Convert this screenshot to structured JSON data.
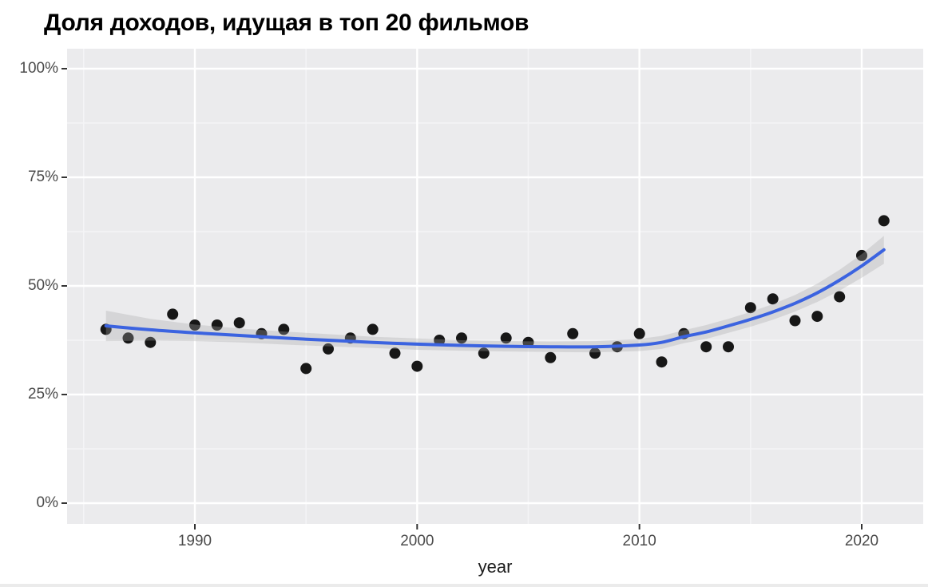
{
  "title": {
    "text": "Доля доходов, идущая в топ 20 фильмов"
  },
  "chart_data": {
    "type": "scatter",
    "title": "Доля доходов, идущая в топ 20 фильмов",
    "xlabel": "year",
    "ylabel": "",
    "units": "percent",
    "grid": true,
    "legend": false,
    "xlim": [
      1984.2,
      2022.8
    ],
    "ylim": [
      -5,
      105
    ],
    "x_ticks": [
      1990,
      2000,
      2010,
      2020
    ],
    "x_minor_gridlines": [
      1985,
      1995,
      2005,
      2015
    ],
    "y_ticks": [
      {
        "label": "0%",
        "value": 0
      },
      {
        "label": "25%",
        "value": 25
      },
      {
        "label": "50%",
        "value": 50
      },
      {
        "label": "75%",
        "value": 75
      },
      {
        "label": "100%",
        "value": 100
      }
    ],
    "y_minor_gridlines": [
      12.5,
      37.5,
      62.5,
      87.5
    ],
    "series": [
      {
        "name": "top20-share-points",
        "type": "scatter",
        "color": "#171717",
        "x": [
          1986,
          1987,
          1988,
          1989,
          1990,
          1991,
          1992,
          1993,
          1994,
          1995,
          1996,
          1997,
          1998,
          1999,
          2000,
          2001,
          2002,
          2003,
          2004,
          2005,
          2006,
          2007,
          2008,
          2009,
          2010,
          2011,
          2012,
          2013,
          2014,
          2015,
          2016,
          2017,
          2018,
          2019,
          2020,
          2021
        ],
        "y": [
          40,
          38,
          37,
          43.5,
          41,
          41,
          41.5,
          39,
          40,
          31,
          35.5,
          38,
          40,
          34.5,
          31.5,
          37.5,
          38,
          34.5,
          38,
          37,
          33.5,
          39,
          34.5,
          36,
          39,
          32.5,
          39,
          36,
          36,
          45,
          47,
          42,
          43,
          47.5,
          57,
          65
        ]
      },
      {
        "name": "loess-trend",
        "type": "line-with-confidence-band",
        "color": "#3b63e0",
        "band_color": "#a9a9a9",
        "x": [
          1986,
          1988,
          1990,
          1992,
          1994,
          1996,
          1998,
          2000,
          2002,
          2004,
          2006,
          2008,
          2010,
          2011,
          2012,
          2013,
          2014,
          2015,
          2016,
          2017,
          2018,
          2019,
          2020,
          2021
        ],
        "y": [
          40.8,
          39.9,
          39.2,
          38.6,
          38.0,
          37.5,
          37.0,
          36.6,
          36.3,
          36.1,
          36.0,
          36.0,
          36.4,
          37.0,
          38.3,
          39.4,
          40.8,
          42.3,
          44.0,
          46.0,
          48.4,
          51.3,
          54.6,
          58.3
        ],
        "ci_halfwidth": [
          3.5,
          2.5,
          1.9,
          1.6,
          1.5,
          1.4,
          1.3,
          1.3,
          1.2,
          1.2,
          1.2,
          1.3,
          1.4,
          1.5,
          1.5,
          1.6,
          1.6,
          1.7,
          1.8,
          1.9,
          2.1,
          2.4,
          2.7,
          3.2
        ]
      }
    ]
  },
  "colors": {
    "panel_bg": "#ebebed",
    "grid_major": "#ffffff",
    "grid_minor": "#f4f4f6",
    "tick_mark": "#333333",
    "tick_label": "#4b4b4b",
    "axis_title": "#1c1c1c",
    "point": "#171717",
    "trend_line": "#3b63e0",
    "band": "#a9a9a9",
    "title_text": "#000000"
  }
}
